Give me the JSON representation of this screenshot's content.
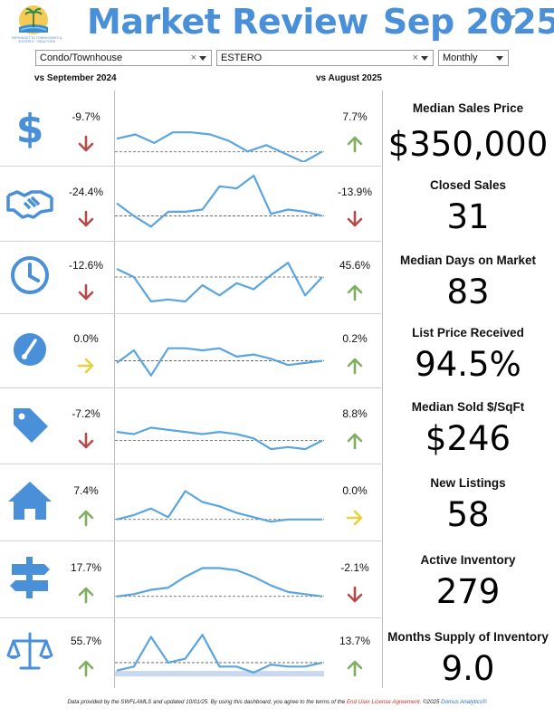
{
  "header": {
    "title_left": "Market Review",
    "title_right": "Sep 2025",
    "logo_text": "BERNADETTA TOWNHOMES & ESTATES · REALTORS"
  },
  "filters": {
    "property_type": "Condo/Townhouse",
    "area": "ESTERO",
    "period": "Monthly",
    "clear_symbol": "×"
  },
  "comparison": {
    "left_label": "vs September 2024",
    "right_label": "vs August 2025"
  },
  "colors": {
    "accent": "#4a90d9",
    "line": "#5aa5df",
    "up": "#7fae5f",
    "down": "#b54a4a",
    "neutral": "#e8cf3c"
  },
  "metrics": [
    {
      "key": "median-sales-price",
      "label": "Median Sales Price",
      "value": "$350,000",
      "icon": "dollar-icon",
      "yoy": "-9.7%",
      "yoy_dir": "down",
      "mom": "7.7%",
      "mom_dir": "up",
      "series": [
        10.5,
        9.5,
        11.5,
        9,
        9,
        9.5,
        11,
        13.5,
        12,
        14,
        16,
        13.5
      ],
      "ref": 13.6,
      "band": false
    },
    {
      "key": "closed-sales",
      "label": "Closed Sales",
      "value": "31",
      "icon": "handshake-icon",
      "yoy": "-24.4%",
      "yoy_dir": "down",
      "mom": "-13.9%",
      "mom_dir": "down",
      "series": [
        8,
        11,
        13.5,
        10,
        10,
        9.5,
        4,
        4.5,
        1.5,
        10.5,
        9.5,
        10,
        11
      ],
      "ref": 11,
      "band": false
    },
    {
      "key": "median-days-on-market",
      "label": "Median Days on Market",
      "value": "83",
      "icon": "clock-icon",
      "yoy": "-12.6%",
      "yoy_dir": "down",
      "mom": "45.6%",
      "mom_dir": "up",
      "series": [
        6,
        8,
        14,
        13.5,
        14,
        10,
        12.5,
        9.5,
        11,
        7.5,
        4.5,
        12.5,
        8
      ],
      "ref": 8,
      "band": false
    },
    {
      "key": "list-price-received",
      "label": "List Price Received",
      "value": "94.5%",
      "icon": "gauge-icon",
      "yoy": "0.0%",
      "yoy_dir": "flat",
      "mom": "0.2%",
      "mom_dir": "up",
      "series": [
        11,
        8,
        14,
        7.5,
        7.5,
        8,
        7.5,
        9.5,
        9,
        10,
        11.5,
        11,
        10.5
      ],
      "ref": 10.5,
      "band": false
    },
    {
      "key": "median-sold-per-sqft",
      "label": "Median Sold $/SqFt",
      "value": "$246",
      "icon": "tag-icon",
      "yoy": "-7.2%",
      "yoy_dir": "down",
      "mom": "8.8%",
      "mom_dir": "up",
      "series": [
        9.5,
        10,
        8.5,
        9,
        9.5,
        10,
        9.5,
        10,
        11,
        13.5,
        13,
        13.5,
        11.5
      ],
      "ref": 11.5,
      "band": false
    },
    {
      "key": "new-listings",
      "label": "New Listings",
      "value": "58",
      "icon": "house-icon",
      "yoy": "7.4%",
      "yoy_dir": "up",
      "mom": "0.0%",
      "mom_dir": "flat",
      "series": [
        12,
        11,
        9.5,
        11.5,
        5.5,
        8,
        9,
        10.5,
        11.5,
        12.5,
        12,
        12,
        12
      ],
      "ref": 12,
      "band": false
    },
    {
      "key": "active-inventory",
      "label": "Active Inventory",
      "value": "279",
      "icon": "signpost-icon",
      "yoy": "17.7%",
      "yoy_dir": "up",
      "mom": "-2.1%",
      "mom_dir": "down",
      "series": [
        12,
        11.5,
        10.5,
        10,
        7.5,
        5.5,
        5.5,
        6,
        7.5,
        9.5,
        11,
        11.5,
        12
      ],
      "ref": 12,
      "band": false
    },
    {
      "key": "months-supply-of-inventory",
      "label": "Months Supply of Inventory",
      "value": "9.0",
      "icon": "scale-icon",
      "yoy": "55.7%",
      "yoy_dir": "up",
      "mom": "13.7%",
      "mom_dir": "up",
      "series": [
        12.5,
        11.5,
        4,
        10.5,
        9.5,
        3.5,
        11.5,
        11.5,
        13,
        11,
        11.5,
        11.5,
        10.5
      ],
      "ref": 10.5,
      "band": true
    }
  ],
  "footer": {
    "prefix": "Data provided by the SWFLAMLS and updated 10/01/25.  By using this dashboard, you agree to the terms of the",
    "link": "End User License Agreement.",
    "copyright": "  ©2025",
    "brand": "Domus Analytics®"
  }
}
